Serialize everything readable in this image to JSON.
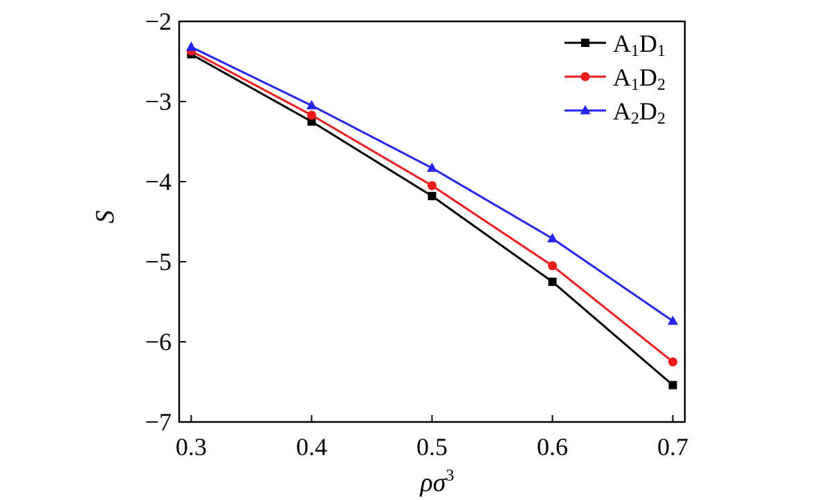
{
  "chart_data": {
    "type": "line",
    "title": "",
    "xlabel": "ρσ",
    "xlabel_sup": "3",
    "ylabel": "S",
    "xlim": [
      0.29,
      0.71
    ],
    "ylim": [
      -7,
      -2
    ],
    "x": [
      0.3,
      0.4,
      0.5,
      0.6,
      0.7
    ],
    "x_ticks": [
      0.3,
      0.4,
      0.5,
      0.6,
      0.7
    ],
    "x_tick_labels": [
      "0.3",
      "0.4",
      "0.5",
      "0.6",
      "0.7"
    ],
    "y_ticks": [
      -2,
      -3,
      -4,
      -5,
      -6,
      -7
    ],
    "y_tick_labels": [
      "−2",
      "−3",
      "−4",
      "−5",
      "−6",
      "−7"
    ],
    "grid": false,
    "legend_position": "top-right",
    "series": [
      {
        "name": "A1D1",
        "legend": {
          "a": "A",
          "a_sub": "1",
          "d": "D",
          "d_sub": "1"
        },
        "color": "#000000",
        "marker": "square",
        "values": [
          -2.41,
          -3.25,
          -4.18,
          -5.25,
          -6.54
        ]
      },
      {
        "name": "A1D2",
        "legend": {
          "a": "A",
          "a_sub": "1",
          "d": "D",
          "d_sub": "2"
        },
        "color": "#ee1c1c",
        "marker": "circle",
        "values": [
          -2.37,
          -3.17,
          -4.05,
          -5.05,
          -6.25
        ]
      },
      {
        "name": "A2D2",
        "legend": {
          "a": "A",
          "a_sub": "2",
          "d": "D",
          "d_sub": "2"
        },
        "color": "#2424ee",
        "marker": "triangle",
        "values": [
          -2.32,
          -3.05,
          -3.83,
          -4.71,
          -5.74
        ]
      }
    ]
  }
}
